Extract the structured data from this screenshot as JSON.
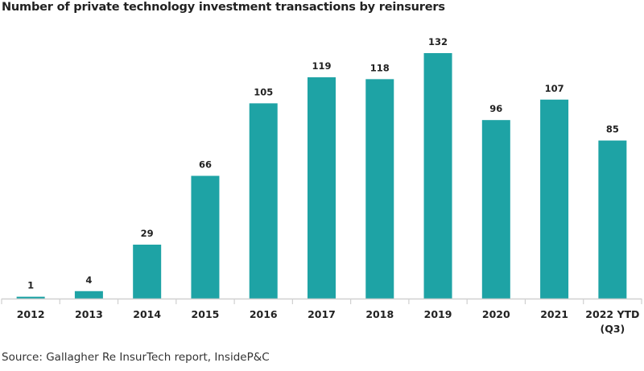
{
  "chart_data": {
    "type": "bar",
    "title": "Number of private technology investment transactions by reinsurers",
    "categories": [
      "2012",
      "2013",
      "2014",
      "2015",
      "2016",
      "2017",
      "2018",
      "2019",
      "2020",
      "2021",
      "2022 YTD (Q3)"
    ],
    "category_lines": [
      [
        "2012"
      ],
      [
        "2013"
      ],
      [
        "2014"
      ],
      [
        "2015"
      ],
      [
        "2016"
      ],
      [
        "2017"
      ],
      [
        "2018"
      ],
      [
        "2019"
      ],
      [
        "2020"
      ],
      [
        "2021"
      ],
      [
        "2022 YTD",
        "(Q3)"
      ]
    ],
    "values": [
      1,
      4,
      29,
      66,
      105,
      119,
      118,
      132,
      96,
      107,
      85
    ],
    "data_labels": [
      "1",
      "4",
      "29",
      "66",
      "105",
      "119",
      "118",
      "132",
      "96",
      "107",
      "85"
    ],
    "xlabel": "",
    "ylabel": "",
    "ylim": [
      0,
      132
    ],
    "grid": false,
    "legend": "none",
    "bar_color": "#1ea3a5",
    "source": "Source: Gallagher Re InsurTech report, InsideP&C"
  }
}
